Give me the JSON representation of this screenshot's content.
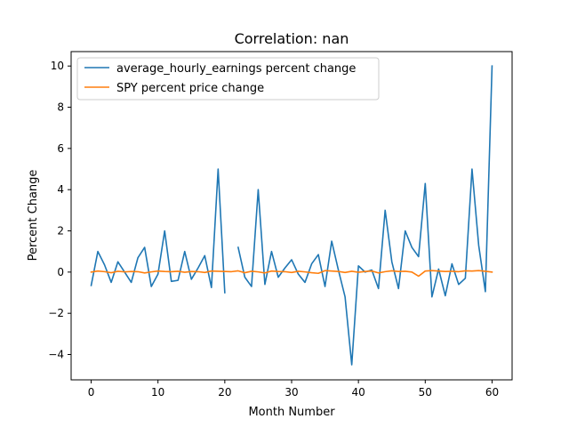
{
  "chart_data": {
    "type": "line",
    "title": "Correlation: nan",
    "xlabel": "Month Number",
    "ylabel": "Percent Change",
    "xlim": [
      -3,
      63
    ],
    "ylim": [
      -5.23,
      10.7
    ],
    "xticks": [
      0,
      10,
      20,
      30,
      40,
      50,
      60
    ],
    "yticks": [
      -4,
      -2,
      0,
      2,
      4,
      6,
      8,
      10
    ],
    "grid": false,
    "legend_position": "top-left",
    "series": [
      {
        "name": "average_hourly_earnings percent change",
        "color": "#1f77b4",
        "x": [
          0,
          1,
          2,
          3,
          4,
          5,
          6,
          7,
          8,
          9,
          10,
          11,
          12,
          13,
          14,
          15,
          16,
          17,
          18,
          19,
          20,
          21,
          22,
          23,
          24,
          25,
          26,
          27,
          28,
          29,
          30,
          31,
          32,
          33,
          34,
          35,
          36,
          37,
          38,
          39,
          40,
          41,
          42,
          43,
          44,
          45,
          46,
          47,
          48,
          49,
          50,
          51,
          52,
          53,
          54,
          55,
          56,
          57,
          58,
          59,
          60
        ],
        "values": [
          -0.65,
          1.0,
          0.35,
          -0.5,
          0.5,
          0.0,
          -0.5,
          0.7,
          1.2,
          -0.7,
          -0.1,
          2.0,
          -0.45,
          -0.4,
          1.0,
          -0.35,
          0.2,
          0.8,
          -0.75,
          5.0,
          -1.0,
          null,
          1.2,
          -0.25,
          -0.7,
          4.0,
          -0.6,
          1.0,
          -0.25,
          0.2,
          0.6,
          -0.1,
          -0.5,
          0.4,
          0.85,
          -0.7,
          1.5,
          0.1,
          -1.2,
          -4.5,
          0.3,
          0.0,
          0.1,
          -0.8,
          3.0,
          0.5,
          -0.8,
          2.0,
          1.2,
          0.75,
          4.3,
          -1.2,
          0.15,
          -1.15,
          0.4,
          -0.6,
          -0.3,
          5.0,
          1.3,
          -0.95,
          10.0
        ]
      },
      {
        "name": "SPY percent price change",
        "color": "#ff7f0e",
        "x": [
          0,
          1,
          2,
          3,
          4,
          5,
          6,
          7,
          8,
          9,
          10,
          11,
          12,
          13,
          14,
          15,
          16,
          17,
          18,
          19,
          20,
          21,
          22,
          23,
          24,
          25,
          26,
          27,
          28,
          29,
          30,
          31,
          32,
          33,
          34,
          35,
          36,
          37,
          38,
          39,
          40,
          41,
          42,
          43,
          44,
          45,
          46,
          47,
          48,
          49,
          50,
          51,
          52,
          53,
          54,
          55,
          56,
          57,
          58,
          59,
          60
        ],
        "values": [
          0.0,
          0.05,
          0.02,
          -0.03,
          0.04,
          0.01,
          0.03,
          0.02,
          -0.04,
          0.01,
          0.05,
          0.03,
          0.02,
          0.04,
          -0.01,
          0.03,
          0.02,
          -0.02,
          0.05,
          0.04,
          0.03,
          0.02,
          0.06,
          -0.03,
          0.04,
          0.01,
          -0.04,
          0.05,
          0.03,
          0.02,
          -0.02,
          0.04,
          0.01,
          -0.03,
          -0.06,
          0.07,
          0.05,
          0.03,
          -0.02,
          0.04,
          -0.01,
          0.03,
          0.05,
          -0.04,
          0.02,
          0.06,
          0.03,
          0.04,
          0.0,
          -0.2,
          0.05,
          0.07,
          0.05,
          0.03,
          0.04,
          0.02,
          0.06,
          0.05,
          0.07,
          0.04,
          0.0
        ]
      }
    ]
  }
}
